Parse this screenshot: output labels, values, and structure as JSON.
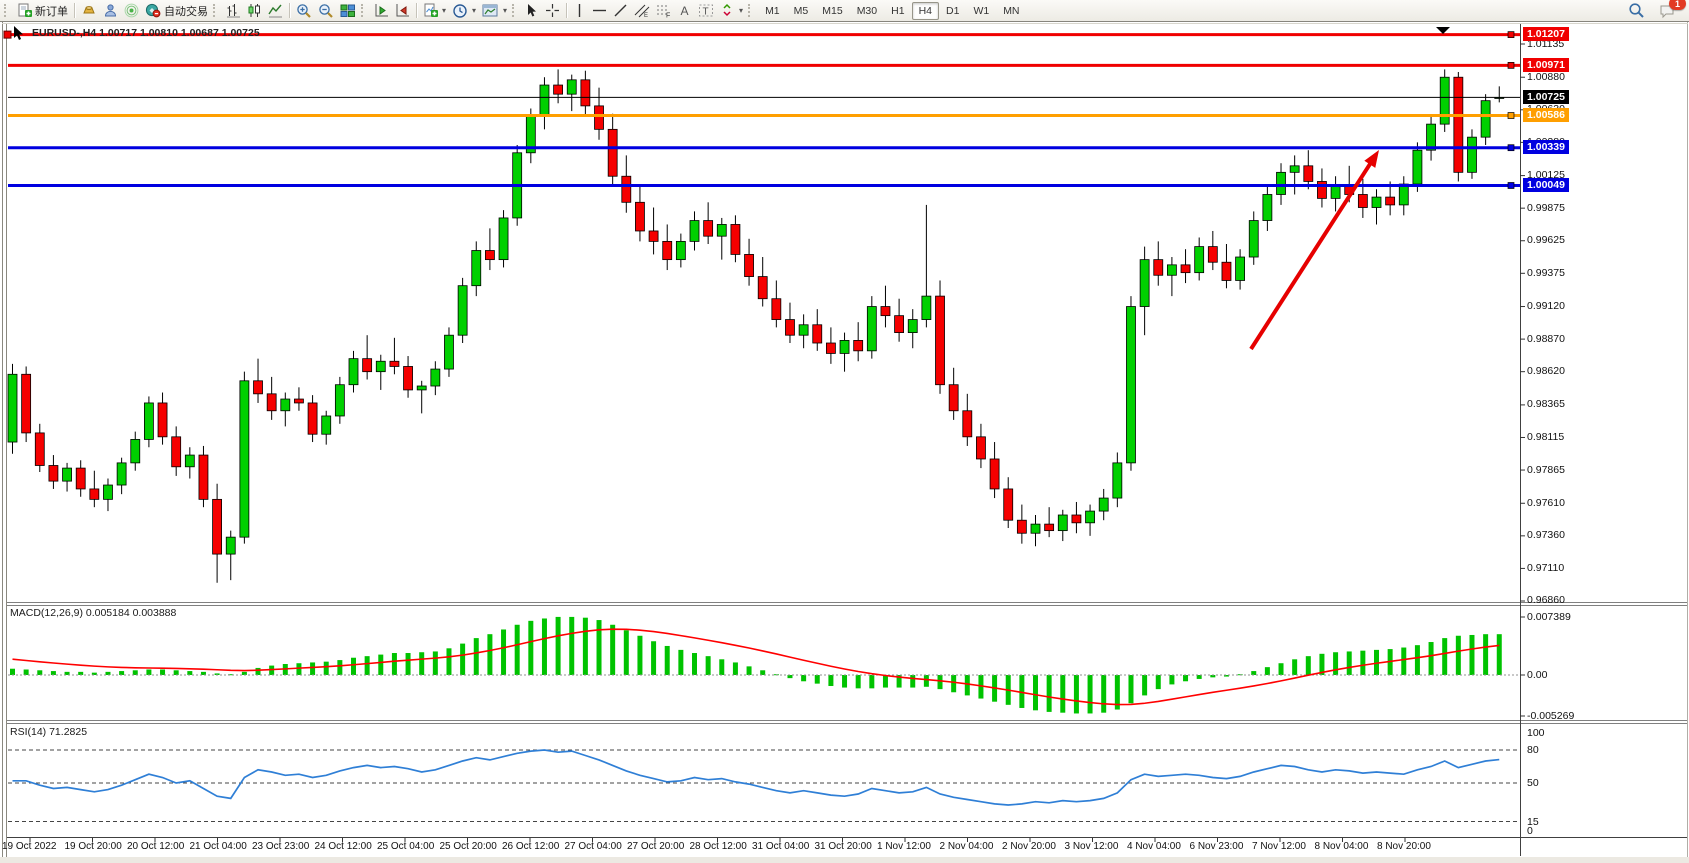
{
  "toolbar": {
    "new_order_label": "新订单",
    "autotrading_label": "自动交易",
    "timeframes": [
      "M1",
      "M5",
      "M15",
      "M30",
      "H1",
      "H4",
      "D1",
      "W1",
      "MN"
    ],
    "active_timeframe": "H4",
    "notification_count": "1"
  },
  "chart": {
    "title": "EURUSD-,H4 1.00717 1.00810 1.00687 1.00725",
    "macd_label": "MACD(12,26,9) 0.005184 0.003888",
    "rsi_label": "RSI(14) 71.2825"
  },
  "chart_data": {
    "type": "candlestick",
    "symbol": "EURUSD-",
    "timeframe": "H4",
    "current_bar": {
      "open": "1.00717",
      "high": "1.00810",
      "low": "1.00687",
      "close": "1.00725"
    },
    "price_axis_ticks": [
      [
        "1.01135",
        1.01135
      ],
      [
        "1.00880",
        1.0088
      ],
      [
        "1.00630",
        1.0063
      ],
      [
        "1.00380",
        1.0038
      ],
      [
        "1.00125",
        1.00125
      ],
      [
        "0.99875",
        0.99875
      ],
      [
        "0.99625",
        0.99625
      ],
      [
        "0.99375",
        0.99375
      ],
      [
        "0.99120",
        0.9912
      ],
      [
        "0.98870",
        0.9887
      ],
      [
        "0.98620",
        0.9862
      ],
      [
        "0.98365",
        0.98365
      ],
      [
        "0.98115",
        0.98115
      ],
      [
        "0.97865",
        0.97865
      ],
      [
        "0.97610",
        0.9761
      ],
      [
        "0.97360",
        0.9736
      ],
      [
        "0.97110",
        0.9711
      ],
      [
        "0.96860",
        0.9686
      ]
    ],
    "price_lines": [
      {
        "label": "1.01207",
        "price": 1.01207,
        "color": "#f00000",
        "width": 3,
        "current": false,
        "left_handle": true
      },
      {
        "label": "1.00971",
        "price": 1.00971,
        "color": "#f00000",
        "width": 3,
        "current": false,
        "left_handle": false
      },
      {
        "label": "1.00725",
        "price": 1.00725,
        "color": "#000000",
        "width": 1,
        "current": true,
        "left_handle": false
      },
      {
        "label": "1.00586",
        "price": 1.00586,
        "color": "#ff9f00",
        "width": 3,
        "current": false,
        "left_handle": false
      },
      {
        "label": "1.00339",
        "price": 1.00339,
        "color": "#0000e0",
        "width": 3,
        "current": false,
        "left_handle": false
      },
      {
        "label": "1.00049",
        "price": 1.00049,
        "color": "#0000e0",
        "width": 3,
        "current": false,
        "left_handle": false
      }
    ],
    "time_labels": [
      "19 Oct 2022",
      "19 Oct 20:00",
      "20 Oct 12:00",
      "21 Oct 04:00",
      "23 Oct 23:00",
      "24 Oct 12:00",
      "25 Oct 04:00",
      "25 Oct 20:00",
      "26 Oct 12:00",
      "27 Oct 04:00",
      "27 Oct 20:00",
      "28 Oct 12:00",
      "31 Oct 04:00",
      "31 Oct 20:00",
      "1 Nov 12:00",
      "2 Nov 04:00",
      "2 Nov 20:00",
      "3 Nov 12:00",
      "4 Nov 04:00",
      "6 Nov 23:00",
      "7 Nov 12:00",
      "8 Nov 04:00",
      "8 Nov 20:00"
    ],
    "candles": [
      [
        0.9808,
        0.9868,
        0.9799,
        0.986
      ],
      [
        0.986,
        0.9866,
        0.9808,
        0.9815
      ],
      [
        0.9815,
        0.9822,
        0.9785,
        0.979
      ],
      [
        0.979,
        0.9798,
        0.9772,
        0.9778
      ],
      [
        0.9778,
        0.9792,
        0.977,
        0.9788
      ],
      [
        0.9788,
        0.9794,
        0.9766,
        0.9772
      ],
      [
        0.9772,
        0.9786,
        0.9758,
        0.9764
      ],
      [
        0.9764,
        0.978,
        0.9755,
        0.9775
      ],
      [
        0.9775,
        0.9796,
        0.9768,
        0.9792
      ],
      [
        0.9792,
        0.9816,
        0.9786,
        0.981
      ],
      [
        0.981,
        0.9843,
        0.9804,
        0.9838
      ],
      [
        0.9838,
        0.9846,
        0.9806,
        0.9812
      ],
      [
        0.9812,
        0.982,
        0.9782,
        0.9789
      ],
      [
        0.9789,
        0.9804,
        0.978,
        0.9798
      ],
      [
        0.9798,
        0.9805,
        0.9758,
        0.9764
      ],
      [
        0.9764,
        0.9776,
        0.97,
        0.9722
      ],
      [
        0.9722,
        0.974,
        0.9702,
        0.9735
      ],
      [
        0.9735,
        0.9862,
        0.973,
        0.9855
      ],
      [
        0.9855,
        0.9872,
        0.9838,
        0.9845
      ],
      [
        0.9845,
        0.9858,
        0.9825,
        0.9832
      ],
      [
        0.9832,
        0.9846,
        0.982,
        0.9841
      ],
      [
        0.9841,
        0.985,
        0.9832,
        0.9838
      ],
      [
        0.9838,
        0.9844,
        0.9808,
        0.9814
      ],
      [
        0.9814,
        0.9832,
        0.9806,
        0.9828
      ],
      [
        0.9828,
        0.9858,
        0.9822,
        0.9852
      ],
      [
        0.9852,
        0.9878,
        0.9846,
        0.9872
      ],
      [
        0.9872,
        0.989,
        0.9856,
        0.9862
      ],
      [
        0.9862,
        0.9875,
        0.9848,
        0.987
      ],
      [
        0.987,
        0.9888,
        0.986,
        0.9866
      ],
      [
        0.9866,
        0.9874,
        0.9842,
        0.9848
      ],
      [
        0.9848,
        0.9855,
        0.983,
        0.9851
      ],
      [
        0.9851,
        0.987,
        0.9844,
        0.9864
      ],
      [
        0.9864,
        0.9896,
        0.9858,
        0.989
      ],
      [
        0.989,
        0.9934,
        0.9884,
        0.9928
      ],
      [
        0.9928,
        0.9962,
        0.992,
        0.9955
      ],
      [
        0.9955,
        0.9972,
        0.994,
        0.9948
      ],
      [
        0.9948,
        0.9986,
        0.9942,
        0.998
      ],
      [
        0.998,
        1.0036,
        0.9974,
        1.003
      ],
      [
        1.003,
        1.0064,
        1.0022,
        1.0058
      ],
      [
        1.0058,
        1.0088,
        1.0048,
        1.0082
      ],
      [
        1.0082,
        1.0094,
        1.0068,
        1.0075
      ],
      [
        1.0075,
        1.009,
        1.0062,
        1.0086
      ],
      [
        1.0086,
        1.0093,
        1.0058,
        1.0066
      ],
      [
        1.0066,
        1.008,
        1.004,
        1.0048
      ],
      [
        1.0048,
        1.006,
        1.0006,
        1.0012
      ],
      [
        1.0012,
        1.0028,
        0.9984,
        0.9992
      ],
      [
        0.9992,
        1.0006,
        0.9962,
        0.997
      ],
      [
        0.997,
        0.9988,
        0.9952,
        0.9962
      ],
      [
        0.9962,
        0.9975,
        0.994,
        0.9948
      ],
      [
        0.9948,
        0.9968,
        0.9942,
        0.9962
      ],
      [
        0.9962,
        0.9985,
        0.9955,
        0.9978
      ],
      [
        0.9978,
        0.9992,
        0.996,
        0.9966
      ],
      [
        0.9966,
        0.998,
        0.9948,
        0.9975
      ],
      [
        0.9975,
        0.9982,
        0.9946,
        0.9952
      ],
      [
        0.9952,
        0.9964,
        0.9928,
        0.9935
      ],
      [
        0.9935,
        0.995,
        0.9912,
        0.9918
      ],
      [
        0.9918,
        0.9932,
        0.9896,
        0.9902
      ],
      [
        0.9902,
        0.9915,
        0.9884,
        0.989
      ],
      [
        0.989,
        0.9906,
        0.988,
        0.9898
      ],
      [
        0.9898,
        0.991,
        0.9878,
        0.9884
      ],
      [
        0.9884,
        0.9896,
        0.9868,
        0.9876
      ],
      [
        0.9876,
        0.9892,
        0.9862,
        0.9886
      ],
      [
        0.9886,
        0.99,
        0.987,
        0.9878
      ],
      [
        0.9878,
        0.992,
        0.9872,
        0.9912
      ],
      [
        0.9912,
        0.9928,
        0.9896,
        0.9905
      ],
      [
        0.9905,
        0.9918,
        0.9885,
        0.9892
      ],
      [
        0.9892,
        0.991,
        0.988,
        0.9902
      ],
      [
        0.9902,
        0.999,
        0.9896,
        0.992
      ],
      [
        0.992,
        0.9932,
        0.9845,
        0.9852
      ],
      [
        0.9852,
        0.9865,
        0.9825,
        0.9832
      ],
      [
        0.9832,
        0.9845,
        0.9805,
        0.9812
      ],
      [
        0.9812,
        0.9822,
        0.9788,
        0.9795
      ],
      [
        0.9795,
        0.9808,
        0.9765,
        0.9772
      ],
      [
        0.9772,
        0.9781,
        0.9742,
        0.9748
      ],
      [
        0.9748,
        0.976,
        0.973,
        0.9738
      ],
      [
        0.9738,
        0.9752,
        0.9728,
        0.9745
      ],
      [
        0.9745,
        0.9758,
        0.9735,
        0.974
      ],
      [
        0.974,
        0.9756,
        0.9732,
        0.9752
      ],
      [
        0.9752,
        0.9762,
        0.9738,
        0.9746
      ],
      [
        0.9746,
        0.976,
        0.9736,
        0.9755
      ],
      [
        0.9755,
        0.9772,
        0.9748,
        0.9765
      ],
      [
        0.9765,
        0.98,
        0.9758,
        0.9792
      ],
      [
        0.9792,
        0.992,
        0.9786,
        0.9912
      ],
      [
        0.9912,
        0.9958,
        0.989,
        0.9948
      ],
      [
        0.9948,
        0.9962,
        0.9928,
        0.9936
      ],
      [
        0.9936,
        0.995,
        0.992,
        0.9944
      ],
      [
        0.9944,
        0.9956,
        0.993,
        0.9938
      ],
      [
        0.9938,
        0.9965,
        0.9932,
        0.9958
      ],
      [
        0.9958,
        0.997,
        0.994,
        0.9946
      ],
      [
        0.9946,
        0.996,
        0.9926,
        0.9932
      ],
      [
        0.9932,
        0.9956,
        0.9925,
        0.995
      ],
      [
        0.995,
        0.9985,
        0.9944,
        0.9978
      ],
      [
        0.9978,
        1.0005,
        0.997,
        0.9998
      ],
      [
        0.9998,
        1.0022,
        0.999,
        1.0015
      ],
      [
        1.0015,
        1.0028,
        0.9998,
        1.002
      ],
      [
        1.002,
        1.0032,
        1.0002,
        1.0008
      ],
      [
        1.0008,
        1.0018,
        0.9988,
        0.9995
      ],
      [
        0.9995,
        1.0012,
        0.9985,
        1.0005
      ],
      [
        1.0005,
        1.002,
        0.9992,
        0.9998
      ],
      [
        0.9998,
        1.001,
        0.998,
        0.9988
      ],
      [
        0.9988,
        1.0002,
        0.9975,
        0.9996
      ],
      [
        0.9996,
        1.0008,
        0.9982,
        0.999
      ],
      [
        0.999,
        1.0012,
        0.9982,
        1.0006
      ],
      [
        1.0006,
        1.0038,
        1.0,
        1.0032
      ],
      [
        1.0032,
        1.0058,
        1.0024,
        1.0052
      ],
      [
        1.0052,
        1.0094,
        1.0046,
        1.0088
      ],
      [
        1.0088,
        1.0092,
        1.0008,
        1.0015
      ],
      [
        1.0015,
        1.0048,
        1.001,
        1.0042
      ],
      [
        1.0042,
        1.0075,
        1.0036,
        1.007
      ],
      [
        1.00717,
        1.0081,
        1.00687,
        1.00725
      ]
    ],
    "macd": {
      "label": "MACD(12,26,9)",
      "main_value": "0.005184",
      "signal_value": "0.003888",
      "axis_labels": [
        "0.007389",
        "0.00",
        "-0.005269"
      ],
      "histogram": [
        0.0008,
        0.0007,
        0.0006,
        0.0005,
        0.0004,
        0.0004,
        0.0003,
        0.0004,
        0.0005,
        0.0006,
        0.0007,
        0.0007,
        0.0006,
        0.0005,
        0.0004,
        0.0002,
        0.0001,
        0.0004,
        0.0009,
        0.0012,
        0.0014,
        0.0015,
        0.0016,
        0.0017,
        0.0019,
        0.0022,
        0.0024,
        0.0026,
        0.0028,
        0.0028,
        0.0029,
        0.003,
        0.0034,
        0.004,
        0.0047,
        0.0052,
        0.0058,
        0.0064,
        0.0069,
        0.0072,
        0.0074,
        0.0074,
        0.0073,
        0.007,
        0.0064,
        0.0057,
        0.005,
        0.0043,
        0.0037,
        0.0032,
        0.0028,
        0.0024,
        0.002,
        0.0016,
        0.0011,
        0.0006,
        0.0001,
        -0.0004,
        -0.0008,
        -0.0011,
        -0.0014,
        -0.0016,
        -0.0017,
        -0.0017,
        -0.0016,
        -0.0016,
        -0.0016,
        -0.0015,
        -0.0018,
        -0.0022,
        -0.0026,
        -0.003,
        -0.0034,
        -0.0038,
        -0.0042,
        -0.0045,
        -0.0047,
        -0.0048,
        -0.0049,
        -0.0049,
        -0.0048,
        -0.0044,
        -0.0036,
        -0.0026,
        -0.0018,
        -0.0012,
        -0.0008,
        -0.0005,
        -0.0003,
        -0.0002,
        0.0001,
        0.0005,
        0.001,
        0.0015,
        0.002,
        0.0024,
        0.0027,
        0.0029,
        0.003,
        0.0031,
        0.0032,
        0.0033,
        0.0035,
        0.0038,
        0.0042,
        0.0047,
        0.005,
        0.0051,
        0.0052,
        0.0052
      ]
    },
    "rsi": {
      "label": "RSI(14)",
      "value": "71.2825",
      "axis_labels": [
        "100",
        "80",
        "50",
        "15",
        "0"
      ],
      "dashed_levels": [
        80,
        50,
        15
      ],
      "series": [
        52,
        52,
        48,
        45,
        46,
        44,
        42,
        44,
        48,
        53,
        58,
        55,
        50,
        52,
        45,
        38,
        36,
        55,
        62,
        60,
        57,
        58,
        55,
        57,
        61,
        64,
        66,
        64,
        65,
        63,
        60,
        62,
        66,
        70,
        73,
        71,
        74,
        77,
        79,
        80,
        78,
        79,
        75,
        71,
        66,
        61,
        57,
        54,
        51,
        52,
        55,
        53,
        54,
        51,
        49,
        46,
        43,
        41,
        43,
        41,
        39,
        38,
        40,
        45,
        43,
        41,
        42,
        46,
        40,
        37,
        35,
        33,
        31,
        30,
        31,
        33,
        32,
        34,
        33,
        34,
        36,
        41,
        53,
        58,
        56,
        57,
        58,
        57,
        55,
        54,
        56,
        60,
        63,
        66,
        65,
        62,
        60,
        62,
        61,
        59,
        60,
        59,
        58,
        62,
        65,
        70,
        64,
        67,
        70,
        71.2825
      ]
    },
    "annotation_arrow": {
      "from": [
        1251,
        349
      ],
      "to": [
        1379,
        150
      ],
      "color": "#e60000"
    },
    "colors": {
      "up": "#00d000",
      "down": "#f50000",
      "wick": "#000000",
      "macd_hist": "#00c300",
      "macd_signal": "#ff0000",
      "rsi_line": "#2f7fd6"
    }
  }
}
